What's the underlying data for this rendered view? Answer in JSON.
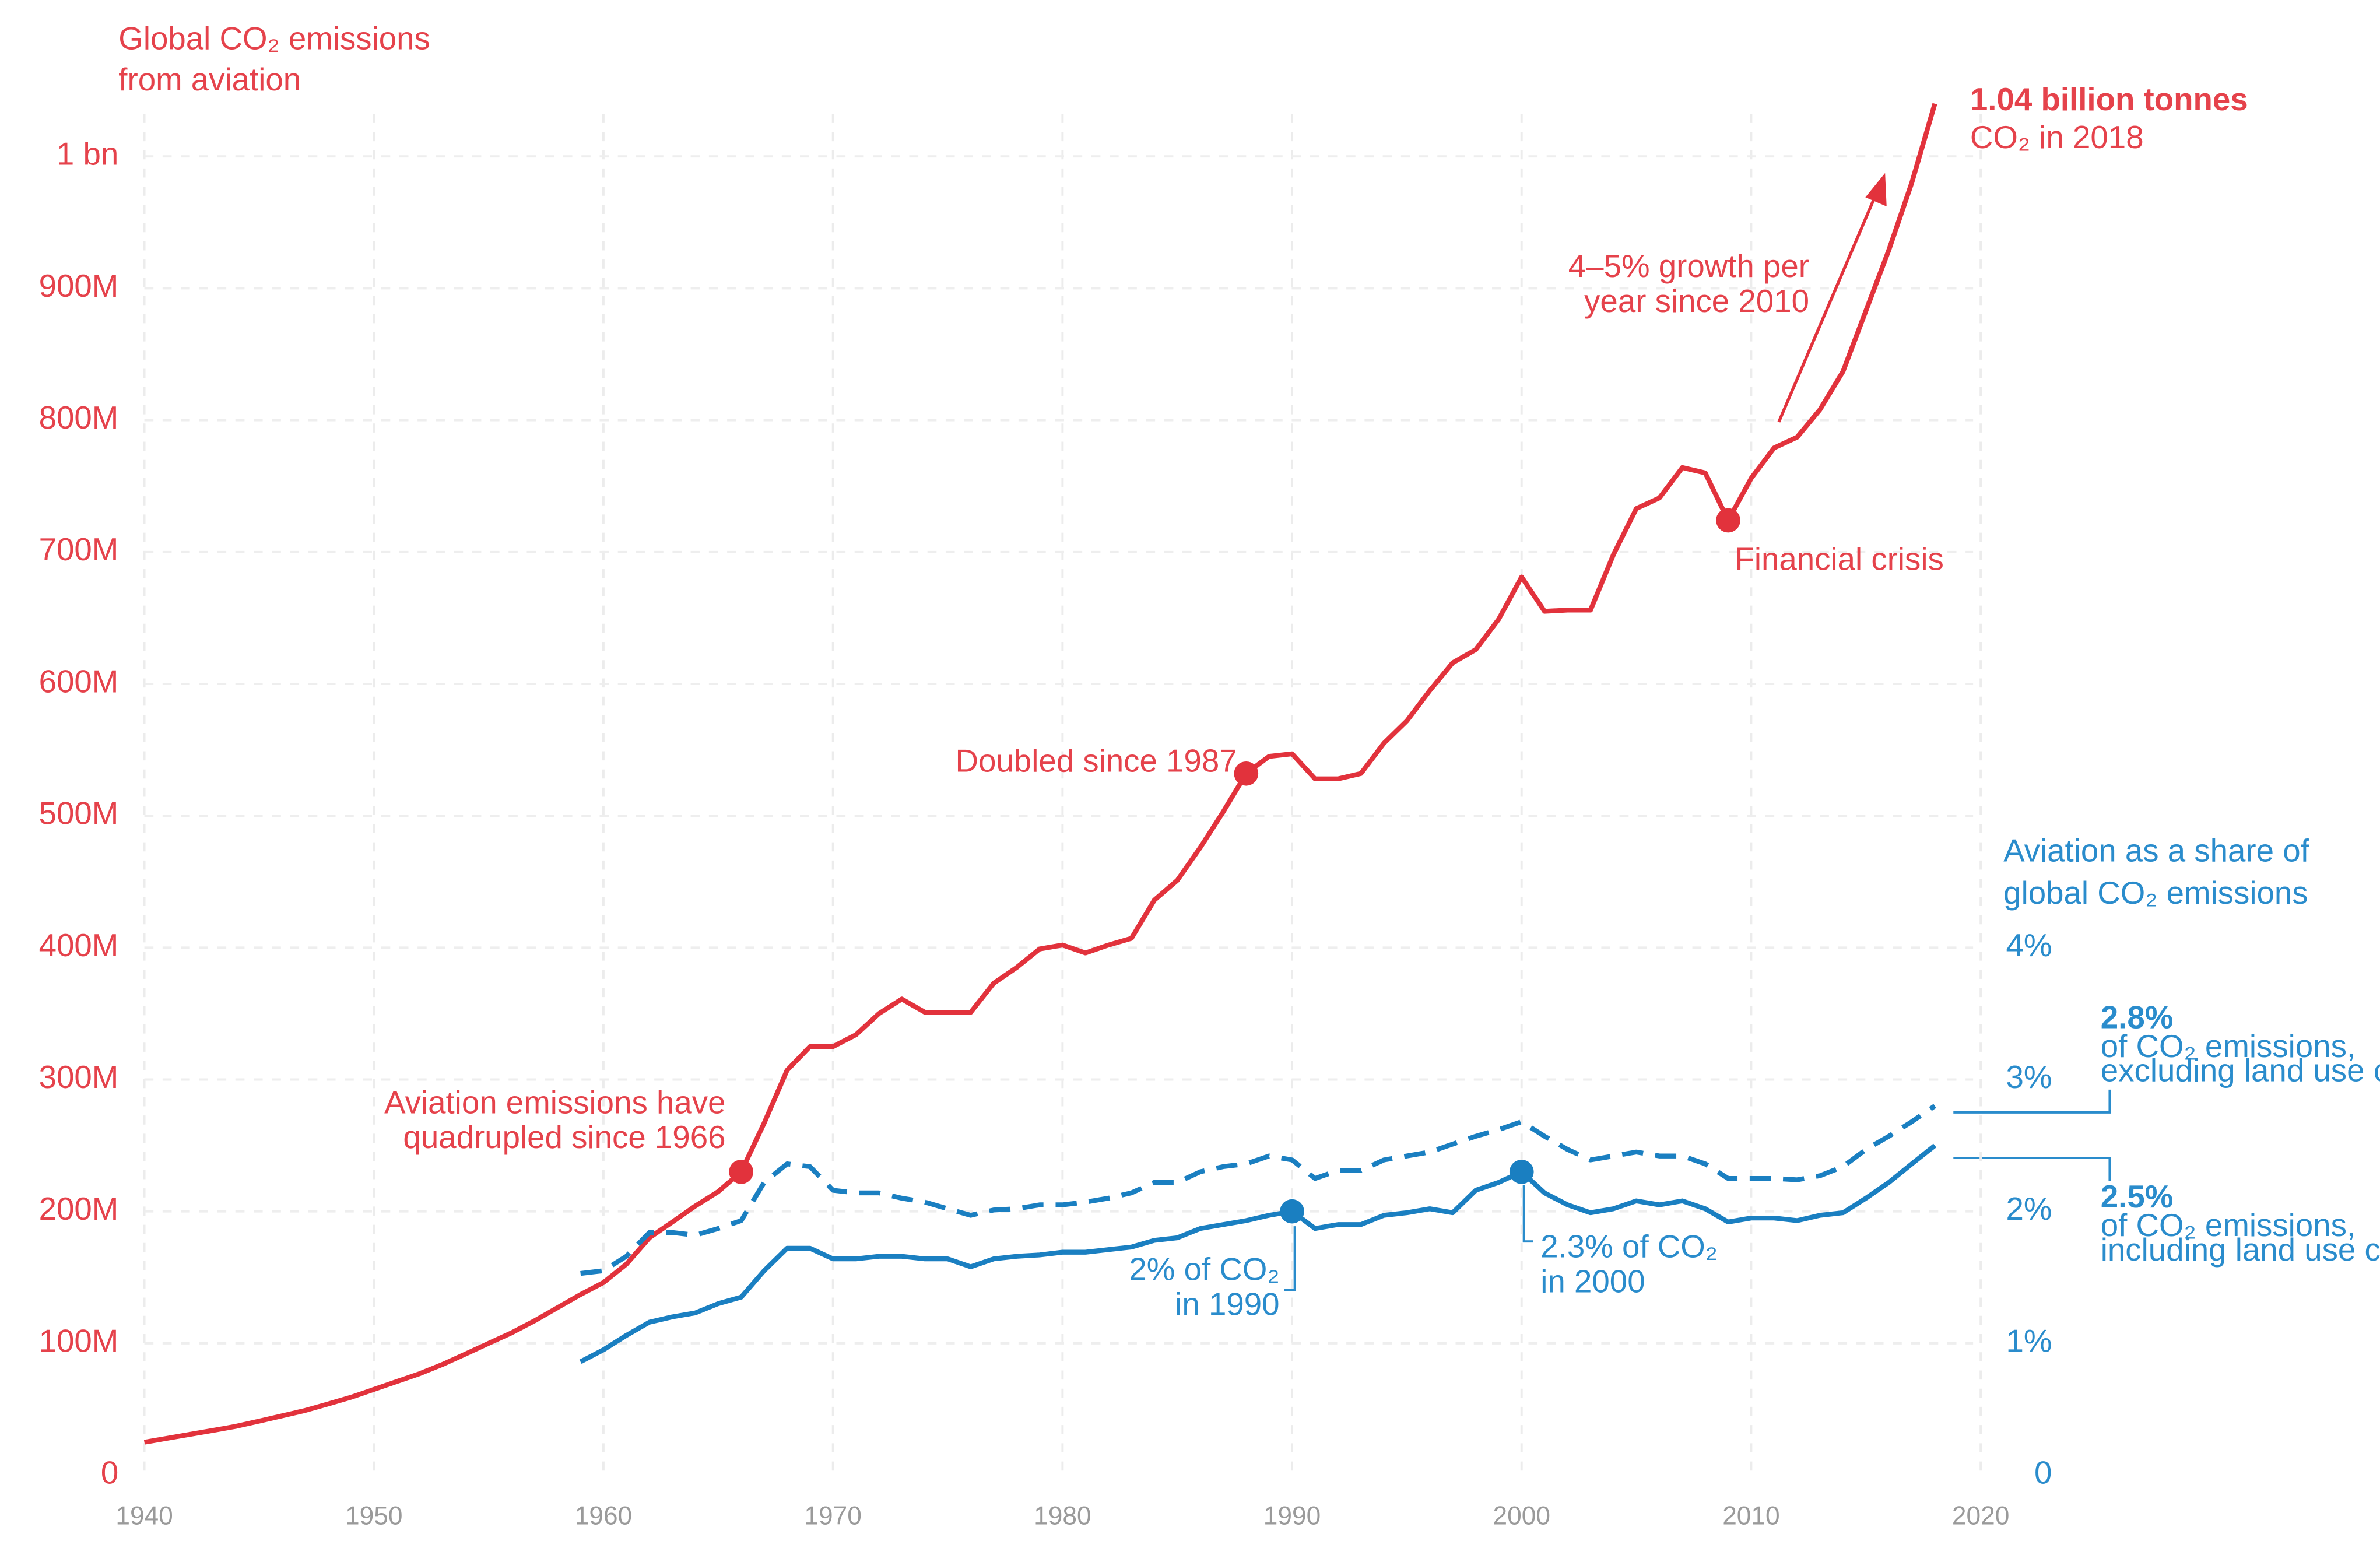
{
  "chart_data": {
    "type": "line",
    "ylabel": [
      "Global CO₂ emissions",
      "from aviation"
    ],
    "y2label": [
      "Aviation as a share of",
      "global CO₂ emissions"
    ],
    "x": [
      1940,
      1941,
      1942,
      1943,
      1944,
      1945,
      1946,
      1947,
      1948,
      1949,
      1950,
      1951,
      1952,
      1953,
      1954,
      1955,
      1956,
      1957,
      1958,
      1959,
      1960,
      1961,
      1962,
      1963,
      1964,
      1965,
      1966,
      1967,
      1968,
      1969,
      1970,
      1971,
      1972,
      1973,
      1974,
      1975,
      1976,
      1977,
      1978,
      1979,
      1980,
      1981,
      1982,
      1983,
      1984,
      1985,
      1986,
      1987,
      1988,
      1989,
      1990,
      1991,
      1992,
      1993,
      1994,
      1995,
      1996,
      1997,
      1998,
      1999,
      2000,
      2001,
      2002,
      2003,
      2004,
      2005,
      2006,
      2007,
      2008,
      2009,
      2010,
      2011,
      2012,
      2013,
      2014,
      2015,
      2016,
      2017,
      2018
    ],
    "xlim": [
      1940,
      2020
    ],
    "xticks": [
      1940,
      1950,
      1960,
      1970,
      1980,
      1990,
      2000,
      2010,
      2020
    ],
    "ylim": [
      0,
      1050
    ],
    "yticks": [
      0,
      {
        "value": 100,
        "label": "100M"
      },
      {
        "value": 200,
        "label": "200M"
      },
      {
        "value": 300,
        "label": "300M"
      },
      {
        "value": 400,
        "label": "400M"
      },
      {
        "value": 500,
        "label": "500M"
      },
      {
        "value": 600,
        "label": "600M"
      },
      {
        "value": 700,
        "label": "700M"
      },
      {
        "value": 800,
        "label": "800M"
      },
      {
        "value": 900,
        "label": "900M"
      },
      {
        "value": 1000,
        "label": "1 bn"
      }
    ],
    "y2lim": [
      0,
      10.5
    ],
    "y2ticks": [
      0,
      {
        "value": 1,
        "label": "1%"
      },
      {
        "value": 2,
        "label": "2%"
      },
      {
        "value": 3,
        "label": "3%"
      },
      {
        "value": 4,
        "label": "4%"
      }
    ],
    "grid": true,
    "series": [
      {
        "color": "#e2323c",
        "style": "solid",
        "end_label": "1.04  billion tonnes",
        "end_note": [
          "CO₂ in 2018"
        ],
        "values": [
          25,
          28,
          31,
          34,
          37,
          41,
          45,
          49,
          54,
          59,
          65,
          71,
          77,
          84,
          92,
          100,
          108,
          117,
          127,
          137,
          146,
          160,
          180,
          192,
          204,
          215,
          230,
          267,
          307,
          325,
          325,
          334,
          350,
          361,
          351,
          351,
          351,
          373,
          385,
          399,
          402,
          396,
          402,
          407,
          436,
          451,
          476,
          503,
          532,
          545,
          547,
          528,
          528,
          532,
          555,
          572,
          595,
          616,
          626,
          649,
          681,
          655,
          656,
          656,
          698,
          733,
          741,
          764,
          760,
          724,
          756,
          779,
          787,
          808,
          837,
          883,
          929,
          980,
          1040
        ]
      },
      {
        "color": "#1a7fc1",
        "style": "dashed",
        "axis": "y2",
        "end_label": "2.8%",
        "end_note": [
          "of CO₂ emissions,",
          "excluding land use change"
        ],
        "values": [
          null,
          null,
          null,
          null,
          null,
          null,
          null,
          null,
          null,
          null,
          null,
          null,
          null,
          null,
          null,
          null,
          null,
          null,
          null,
          1.53,
          1.55,
          1.66,
          1.84,
          1.84,
          1.82,
          1.87,
          1.93,
          2.22,
          2.36,
          2.34,
          2.16,
          2.14,
          2.14,
          2.1,
          2.07,
          2.02,
          1.97,
          2.01,
          2.02,
          2.05,
          2.05,
          2.07,
          2.1,
          2.14,
          2.22,
          2.22,
          2.3,
          2.34,
          2.36,
          2.42,
          2.39,
          2.25,
          2.31,
          2.31,
          2.39,
          2.42,
          2.45,
          2.51,
          2.57,
          2.62,
          2.68,
          2.57,
          2.47,
          2.39,
          2.42,
          2.45,
          2.42,
          2.42,
          2.36,
          2.25,
          2.25,
          2.25,
          2.24,
          2.27,
          2.34,
          2.47,
          2.57,
          2.68,
          2.8
        ]
      },
      {
        "color": "#1a7fc1",
        "style": "solid",
        "axis": "y2",
        "end_label": "2.5%",
        "end_note": [
          "of CO₂ emissions,",
          "including land use change"
        ],
        "values": [
          null,
          null,
          null,
          null,
          null,
          null,
          null,
          null,
          null,
          null,
          null,
          null,
          null,
          null,
          null,
          null,
          null,
          null,
          null,
          0.86,
          0.95,
          1.06,
          1.16,
          1.2,
          1.23,
          1.3,
          1.35,
          1.55,
          1.72,
          1.72,
          1.64,
          1.64,
          1.66,
          1.66,
          1.64,
          1.64,
          1.58,
          1.64,
          1.66,
          1.67,
          1.69,
          1.69,
          1.71,
          1.73,
          1.78,
          1.8,
          1.87,
          1.9,
          1.93,
          1.97,
          2.0,
          1.87,
          1.9,
          1.9,
          1.97,
          1.99,
          2.02,
          1.99,
          2.16,
          2.22,
          2.3,
          2.14,
          2.05,
          1.99,
          2.02,
          2.08,
          2.05,
          2.08,
          2.02,
          1.92,
          1.95,
          1.95,
          1.93,
          1.97,
          1.99,
          2.1,
          2.22,
          2.36,
          2.5
        ]
      }
    ],
    "annotations": [
      {
        "lines": [
          "Aviation emissions have",
          "quadrupled since 1966"
        ],
        "x": 1966
      },
      {
        "lines": [
          "Doubled since 1987"
        ],
        "x": 1988
      },
      {
        "lines": [
          "Financial crisis"
        ],
        "x": 2009
      },
      {
        "lines": [
          "4–5% growth per",
          "year since 2010"
        ]
      },
      {
        "lines": [
          "2% of CO₂",
          "in 1990"
        ],
        "x": 1990
      },
      {
        "lines": [
          "2.3% of CO₂",
          "in 2000"
        ],
        "x": 2000
      }
    ]
  }
}
